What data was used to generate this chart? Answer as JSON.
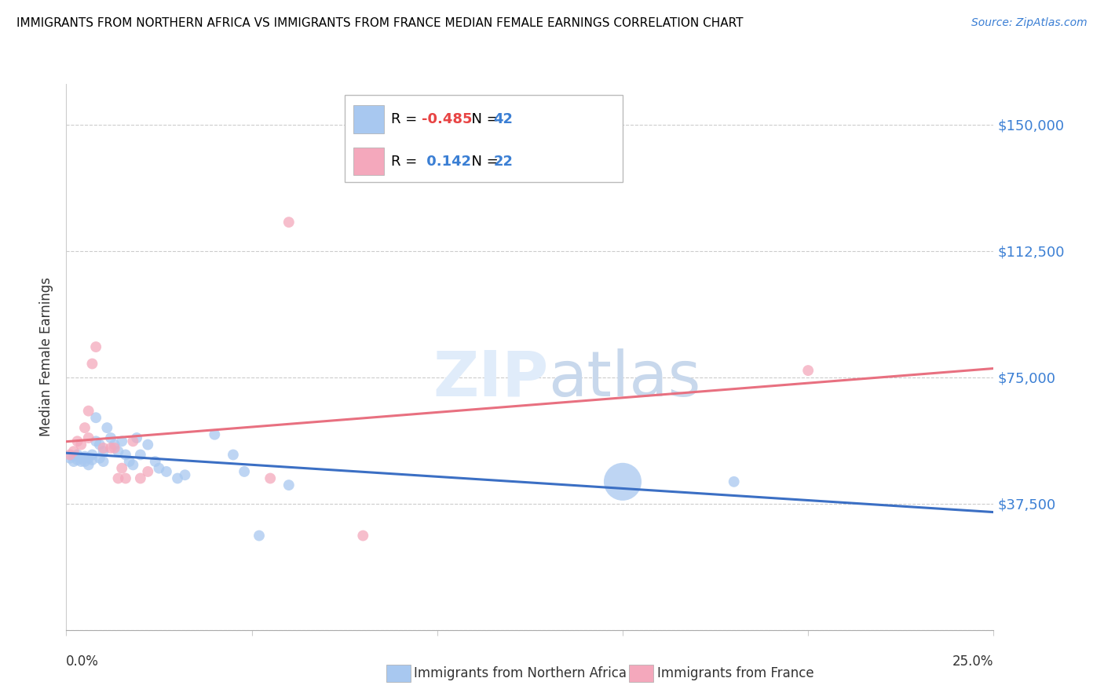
{
  "title": "IMMIGRANTS FROM NORTHERN AFRICA VS IMMIGRANTS FROM FRANCE MEDIAN FEMALE EARNINGS CORRELATION CHART",
  "source": "Source: ZipAtlas.com",
  "ylabel": "Median Female Earnings",
  "yticks": [
    0,
    37500,
    75000,
    112500,
    150000
  ],
  "ytick_labels": [
    "",
    "$37,500",
    "$75,000",
    "$112,500",
    "$150,000"
  ],
  "xlim": [
    0.0,
    0.25
  ],
  "ylim": [
    0,
    162000
  ],
  "legend1_R": "-0.485",
  "legend1_N": "42",
  "legend2_R": "0.142",
  "legend2_N": "22",
  "blue_color": "#A8C8F0",
  "pink_color": "#F4A8BC",
  "blue_line_color": "#3B6FC4",
  "pink_line_color": "#E87080",
  "watermark_color": "#E0ECFA",
  "blue_points": [
    [
      0.001,
      51000
    ],
    [
      0.002,
      51500
    ],
    [
      0.002,
      50000
    ],
    [
      0.003,
      52000
    ],
    [
      0.003,
      50500
    ],
    [
      0.004,
      51000
    ],
    [
      0.004,
      50000
    ],
    [
      0.005,
      51500
    ],
    [
      0.005,
      50000
    ],
    [
      0.006,
      51000
    ],
    [
      0.006,
      49000
    ],
    [
      0.007,
      52000
    ],
    [
      0.007,
      50500
    ],
    [
      0.008,
      63000
    ],
    [
      0.008,
      56000
    ],
    [
      0.009,
      55000
    ],
    [
      0.009,
      51000
    ],
    [
      0.01,
      50000
    ],
    [
      0.01,
      53000
    ],
    [
      0.011,
      60000
    ],
    [
      0.012,
      57000
    ],
    [
      0.013,
      55000
    ],
    [
      0.014,
      53000
    ],
    [
      0.015,
      56000
    ],
    [
      0.016,
      52000
    ],
    [
      0.017,
      50000
    ],
    [
      0.018,
      49000
    ],
    [
      0.019,
      57000
    ],
    [
      0.02,
      52000
    ],
    [
      0.022,
      55000
    ],
    [
      0.024,
      50000
    ],
    [
      0.025,
      48000
    ],
    [
      0.027,
      47000
    ],
    [
      0.03,
      45000
    ],
    [
      0.032,
      46000
    ],
    [
      0.04,
      58000
    ],
    [
      0.045,
      52000
    ],
    [
      0.048,
      47000
    ],
    [
      0.052,
      28000
    ],
    [
      0.06,
      43000
    ],
    [
      0.15,
      44000
    ],
    [
      0.18,
      44000
    ]
  ],
  "blue_sizes": [
    100,
    100,
    100,
    100,
    100,
    100,
    100,
    100,
    100,
    100,
    100,
    100,
    100,
    100,
    100,
    100,
    100,
    100,
    100,
    100,
    100,
    100,
    100,
    100,
    100,
    100,
    100,
    100,
    100,
    100,
    100,
    100,
    100,
    100,
    100,
    100,
    100,
    100,
    100,
    100,
    1200,
    100
  ],
  "pink_points": [
    [
      0.001,
      52000
    ],
    [
      0.002,
      53000
    ],
    [
      0.003,
      56000
    ],
    [
      0.004,
      55000
    ],
    [
      0.005,
      60000
    ],
    [
      0.006,
      65000
    ],
    [
      0.006,
      57000
    ],
    [
      0.007,
      79000
    ],
    [
      0.008,
      84000
    ],
    [
      0.01,
      54000
    ],
    [
      0.012,
      54000
    ],
    [
      0.013,
      54000
    ],
    [
      0.014,
      45000
    ],
    [
      0.015,
      48000
    ],
    [
      0.016,
      45000
    ],
    [
      0.018,
      56000
    ],
    [
      0.02,
      45000
    ],
    [
      0.022,
      47000
    ],
    [
      0.055,
      45000
    ],
    [
      0.06,
      121000
    ],
    [
      0.2,
      77000
    ],
    [
      0.08,
      28000
    ]
  ],
  "pink_sizes": [
    100,
    100,
    100,
    100,
    100,
    100,
    100,
    100,
    100,
    100,
    100,
    100,
    100,
    100,
    100,
    100,
    100,
    100,
    100,
    100,
    100,
    100
  ]
}
